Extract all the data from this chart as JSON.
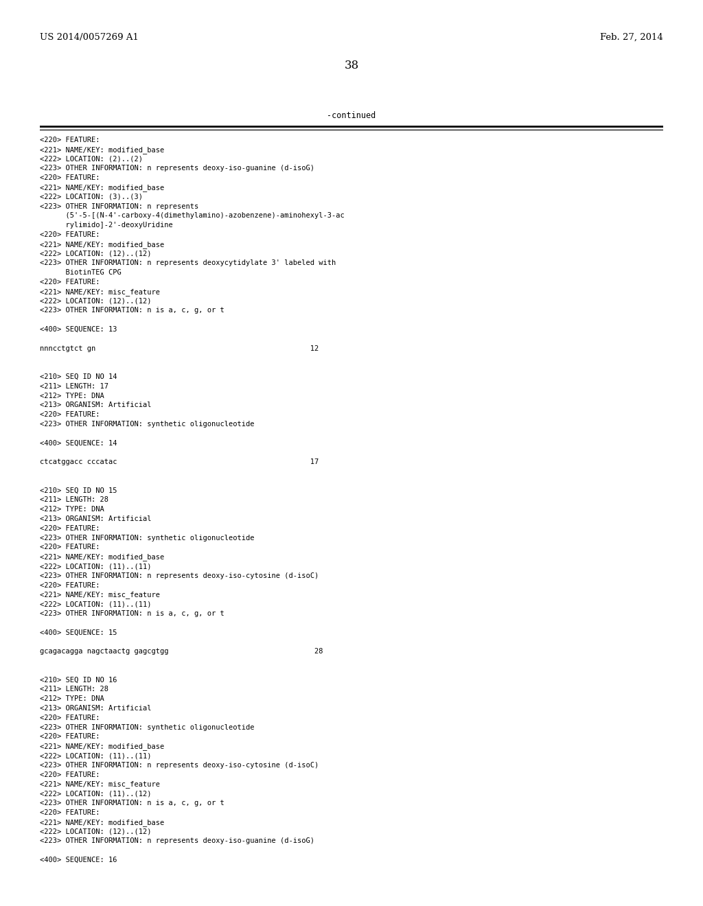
{
  "header_left": "US 2014/0057269 A1",
  "header_right": "Feb. 27, 2014",
  "page_number": "38",
  "continued_label": "-continued",
  "background_color": "#ffffff",
  "text_color": "#000000",
  "mono_font_size": 7.5,
  "header_font_size": 9.5,
  "page_num_font_size": 12,
  "content_lines": [
    "<220> FEATURE:",
    "<221> NAME/KEY: modified_base",
    "<222> LOCATION: (2)..(2)",
    "<223> OTHER INFORMATION: n represents deoxy-iso-guanine (d-isoG)",
    "<220> FEATURE:",
    "<221> NAME/KEY: modified_base",
    "<222> LOCATION: (3)..(3)",
    "<223> OTHER INFORMATION: n represents",
    "      (5'-5-[(N-4'-carboxy-4(dimethylamino)-azobenzene)-aminohexyl-3-ac",
    "      rylimido]-2'-deoxyUridine",
    "<220> FEATURE:",
    "<221> NAME/KEY: modified_base",
    "<222> LOCATION: (12)..(12)",
    "<223> OTHER INFORMATION: n represents deoxycytidylate 3' labeled with",
    "      BiotinTEG CPG",
    "<220> FEATURE:",
    "<221> NAME/KEY: misc_feature",
    "<222> LOCATION: (12)..(12)",
    "<223> OTHER INFORMATION: n is a, c, g, or t",
    "",
    "<400> SEQUENCE: 13",
    "",
    "nnncctgtct gn                                                  12",
    "",
    "",
    "<210> SEQ ID NO 14",
    "<211> LENGTH: 17",
    "<212> TYPE: DNA",
    "<213> ORGANISM: Artificial",
    "<220> FEATURE:",
    "<223> OTHER INFORMATION: synthetic oligonucleotide",
    "",
    "<400> SEQUENCE: 14",
    "",
    "ctcatggacc cccatac                                             17",
    "",
    "",
    "<210> SEQ ID NO 15",
    "<211> LENGTH: 28",
    "<212> TYPE: DNA",
    "<213> ORGANISM: Artificial",
    "<220> FEATURE:",
    "<223> OTHER INFORMATION: synthetic oligonucleotide",
    "<220> FEATURE:",
    "<221> NAME/KEY: modified_base",
    "<222> LOCATION: (11)..(11)",
    "<223> OTHER INFORMATION: n represents deoxy-iso-cytosine (d-isoC)",
    "<220> FEATURE:",
    "<221> NAME/KEY: misc_feature",
    "<222> LOCATION: (11)..(11)",
    "<223> OTHER INFORMATION: n is a, c, g, or t",
    "",
    "<400> SEQUENCE: 15",
    "",
    "gcagacagga nagctaactg gagcgtgg                                  28",
    "",
    "",
    "<210> SEQ ID NO 16",
    "<211> LENGTH: 28",
    "<212> TYPE: DNA",
    "<213> ORGANISM: Artificial",
    "<220> FEATURE:",
    "<223> OTHER INFORMATION: synthetic oligonucleotide",
    "<220> FEATURE:",
    "<221> NAME/KEY: modified_base",
    "<222> LOCATION: (11)..(11)",
    "<223> OTHER INFORMATION: n represents deoxy-iso-cytosine (d-isoC)",
    "<220> FEATURE:",
    "<221> NAME/KEY: misc_feature",
    "<222> LOCATION: (11)..(12)",
    "<223> OTHER INFORMATION: n is a, c, g, or t",
    "<220> FEATURE:",
    "<221> NAME/KEY: modified_base",
    "<222> LOCATION: (12)..(12)",
    "<223> OTHER INFORMATION: n represents deoxy-iso-guanine (d-isoG)",
    "",
    "<400> SEQUENCE: 16"
  ]
}
